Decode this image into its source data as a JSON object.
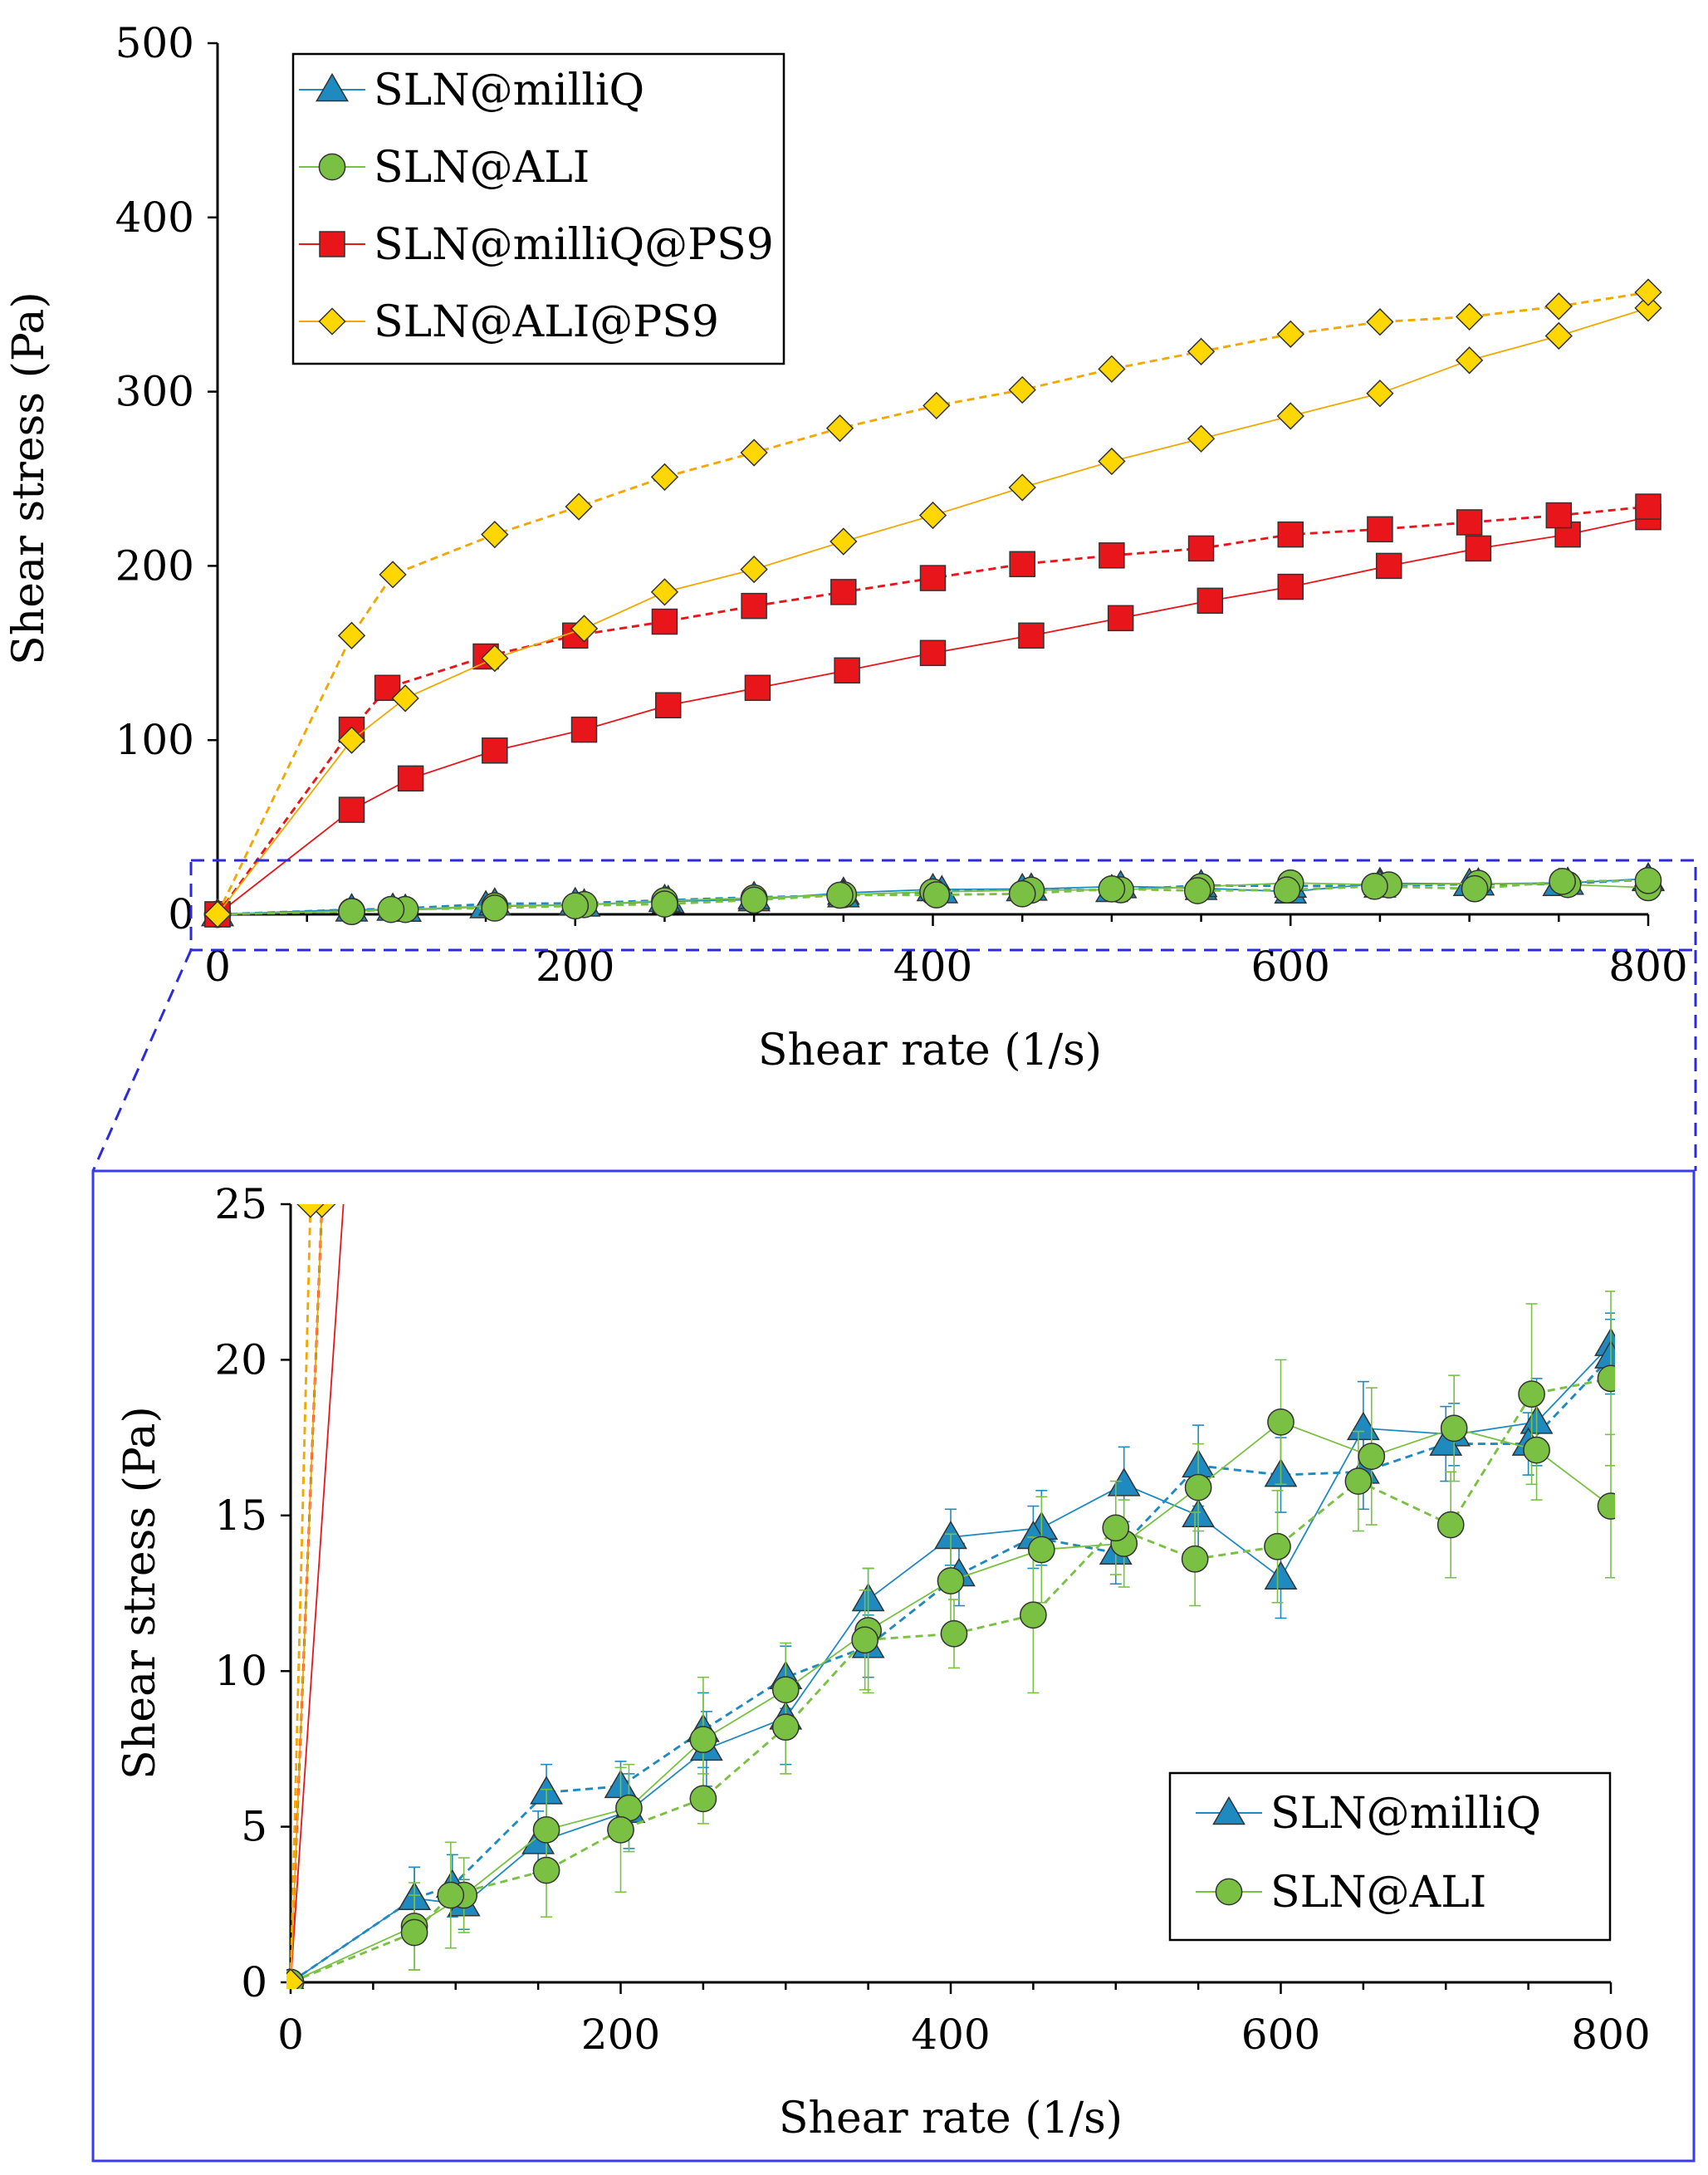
{
  "chart_data": [
    {
      "id": "main",
      "type": "line",
      "title": "",
      "xlabel": "Shear rate (1/s)",
      "ylabel": "Shear stress (Pa)",
      "xlim": [
        0,
        800
      ],
      "ylim": [
        0,
        500
      ],
      "xticks": [
        0,
        200,
        400,
        600,
        800
      ],
      "yticks": [
        0,
        100,
        200,
        300,
        400,
        500
      ],
      "legend_position": "top-left",
      "series": [
        {
          "name": "SLN@milliQ",
          "color": "#1f8ac0",
          "marker": "triangle",
          "branches": [
            {
              "style": "solid",
              "x": [
                0,
                75,
                105,
                150,
                205,
                252,
                300,
                350,
                400,
                455,
                505,
                550,
                600,
                650,
                705,
                755,
                800
              ],
              "y": [
                0,
                2.7,
                2.5,
                4.5,
                5.5,
                7.5,
                8.5,
                12.3,
                14.3,
                14.6,
                16,
                15,
                13,
                17.8,
                17.6,
                18,
                20.5
              ]
            },
            {
              "style": "dashed",
              "x": [
                0,
                75,
                98,
                155,
                200,
                250,
                300,
                350,
                405,
                450,
                500,
                550,
                600,
                650,
                700,
                750,
                800
              ],
              "y": [
                0,
                2.7,
                3.1,
                6.1,
                6.3,
                8.1,
                9.8,
                10.8,
                13.1,
                14.3,
                13.8,
                16.6,
                16.3,
                16.4,
                17.3,
                17.3,
                20.1
              ]
            }
          ]
        },
        {
          "name": "SLN@ALI",
          "color": "#7ac143",
          "marker": "circle",
          "branches": [
            {
              "style": "solid",
              "x": [
                0,
                75,
                105,
                155,
                205,
                250,
                300,
                350,
                400,
                455,
                505,
                550,
                600,
                655,
                705,
                755,
                800
              ],
              "y": [
                0,
                1.8,
                2.8,
                4.9,
                5.6,
                7.8,
                9.4,
                11.3,
                12.9,
                13.9,
                14.1,
                15.9,
                18,
                16.9,
                17.8,
                17.1,
                15.3
              ]
            },
            {
              "style": "dashed",
              "x": [
                0,
                75,
                97,
                155,
                200,
                250,
                300,
                348,
                402,
                450,
                500,
                548,
                598,
                647,
                703,
                752,
                800
              ],
              "y": [
                0,
                1.6,
                2.8,
                3.6,
                4.9,
                5.9,
                8.2,
                11,
                11.2,
                11.8,
                14.6,
                13.6,
                14,
                16.1,
                14.7,
                18.9,
                19.4
              ]
            }
          ]
        },
        {
          "name": "SLN@milliQ@PS9",
          "color": "#e8161b",
          "marker": "square",
          "branches": [
            {
              "style": "solid",
              "x": [
                0,
                75,
                108,
                155,
                205,
                252,
                302,
                352,
                400,
                455,
                505,
                555,
                600,
                655,
                705,
                755,
                800
              ],
              "y": [
                0,
                60,
                78,
                94,
                106,
                120,
                130,
                140,
                150,
                160,
                170,
                180,
                188,
                200,
                210,
                218,
                228
              ]
            },
            {
              "style": "dashed",
              "x": [
                0,
                75,
                95,
                150,
                200,
                250,
                300,
                350,
                400,
                450,
                500,
                550,
                600,
                650,
                700,
                750,
                800
              ],
              "y": [
                0,
                106,
                130,
                148,
                160,
                168,
                177,
                185,
                193,
                201,
                206,
                210,
                218,
                221,
                225,
                229,
                234
              ]
            }
          ]
        },
        {
          "name": "SLN@ALI@PS9",
          "color": "#ffd700",
          "marker": "diamond",
          "line_color": "#f2a800",
          "branches": [
            {
              "style": "solid",
              "x": [
                0,
                75,
                105,
                155,
                205,
                250,
                300,
                350,
                400,
                450,
                500,
                550,
                600,
                650,
                700,
                750,
                800
              ],
              "y": [
                0,
                100,
                124,
                147,
                164,
                185,
                198,
                214,
                229,
                245,
                260,
                273,
                286,
                299,
                318,
                332,
                348
              ]
            },
            {
              "style": "dashed",
              "x": [
                0,
                75,
                98,
                155,
                202,
                250,
                300,
                348,
                402,
                450,
                500,
                550,
                600,
                650,
                700,
                750,
                800
              ],
              "y": [
                0,
                160,
                195,
                218,
                234,
                251,
                265,
                279,
                292,
                301,
                313,
                323,
                333,
                340,
                343,
                349,
                357
              ]
            }
          ]
        }
      ]
    },
    {
      "id": "inset",
      "type": "line",
      "title": "",
      "xlabel": "Shear rate (1/s)",
      "ylabel": "Shear stress (Pa)",
      "xlim": [
        0,
        800
      ],
      "ylim": [
        0,
        25
      ],
      "xticks": [
        0,
        200,
        400,
        600,
        800
      ],
      "yticks": [
        0,
        5,
        10,
        15,
        20,
        25
      ],
      "legend_position": "bottom-right",
      "series": [
        {
          "name": "SLN@milliQ",
          "color": "#1f8ac0",
          "marker": "triangle",
          "branches": [
            {
              "style": "solid",
              "x": [
                0,
                75,
                105,
                150,
                205,
                252,
                300,
                350,
                400,
                455,
                505,
                550,
                600,
                650,
                705,
                755,
                800
              ],
              "y": [
                0,
                2.7,
                2.5,
                4.5,
                5.5,
                7.5,
                8.5,
                12.3,
                14.3,
                14.6,
                16,
                15,
                13,
                17.8,
                17.6,
                18,
                20.5
              ],
              "err": [
                0,
                1,
                0.8,
                1,
                1.2,
                1.2,
                1.5,
                1,
                0.9,
                1.2,
                1.2,
                1.3,
                1.3,
                1.5,
                1,
                1.4,
                1
              ]
            },
            {
              "style": "dashed",
              "x": [
                0,
                75,
                98,
                155,
                200,
                250,
                300,
                350,
                405,
                450,
                500,
                550,
                600,
                650,
                700,
                750,
                800
              ],
              "y": [
                0,
                2.7,
                3.1,
                6.1,
                6.3,
                8.1,
                9.8,
                10.8,
                13.1,
                14.3,
                13.8,
                16.6,
                16.3,
                16.4,
                17.3,
                17.3,
                20.1
              ],
              "err": [
                0,
                1,
                1,
                0.9,
                0.8,
                1.2,
                1,
                1,
                1,
                1,
                1,
                1.3,
                1.2,
                1.2,
                1.2,
                1,
                1.2
              ]
            }
          ]
        },
        {
          "name": "SLN@ALI",
          "color": "#7ac143",
          "marker": "circle",
          "branches": [
            {
              "style": "solid",
              "x": [
                0,
                75,
                105,
                155,
                205,
                250,
                300,
                350,
                400,
                455,
                505,
                550,
                600,
                655,
                705,
                755,
                800
              ],
              "y": [
                0,
                1.8,
                2.8,
                4.9,
                5.6,
                7.8,
                9.4,
                11.3,
                12.9,
                13.9,
                14.1,
                15.9,
                18,
                16.9,
                17.8,
                17.1,
                15.3
              ],
              "err": [
                0,
                1.4,
                1.2,
                1.3,
                1.4,
                2,
                1.5,
                2,
                1.5,
                1.7,
                1.4,
                1.4,
                2,
                2.2,
                1.7,
                1.6,
                2.3
              ]
            },
            {
              "style": "dashed",
              "x": [
                0,
                75,
                97,
                155,
                200,
                250,
                300,
                348,
                402,
                450,
                500,
                548,
                598,
                647,
                703,
                752,
                800
              ],
              "y": [
                0,
                1.6,
                2.8,
                3.6,
                4.9,
                5.9,
                8.2,
                11,
                11.2,
                11.8,
                14.6,
                13.6,
                14,
                16.1,
                14.7,
                18.9,
                19.4
              ],
              "err": [
                0,
                1.2,
                1.7,
                1.5,
                2,
                0.8,
                1.5,
                1.6,
                1.1,
                2.5,
                1.5,
                1.5,
                1.8,
                1.6,
                1.7,
                2.9,
                2.8
              ]
            }
          ]
        },
        {
          "name": "SLN@milliQ@PS9",
          "color": "#e8161b",
          "marker": "none",
          "show_in_legend": false,
          "branches": [
            {
              "style": "solid",
              "x": [
                0,
                32
              ],
              "y": [
                0,
                25
              ]
            },
            {
              "style": "dashed",
              "x": [
                0,
                19
              ],
              "y": [
                0,
                25
              ]
            }
          ]
        },
        {
          "name": "SLN@ALI@PS9",
          "color": "#ffd700",
          "line_color": "#f2a800",
          "marker": "diamond",
          "show_in_legend": false,
          "branches": [
            {
              "style": "solid",
              "x": [
                0,
                19
              ],
              "y": [
                0,
                25
              ]
            },
            {
              "style": "dashed",
              "x": [
                0,
                12
              ],
              "y": [
                0,
                25
              ]
            }
          ]
        }
      ]
    }
  ]
}
